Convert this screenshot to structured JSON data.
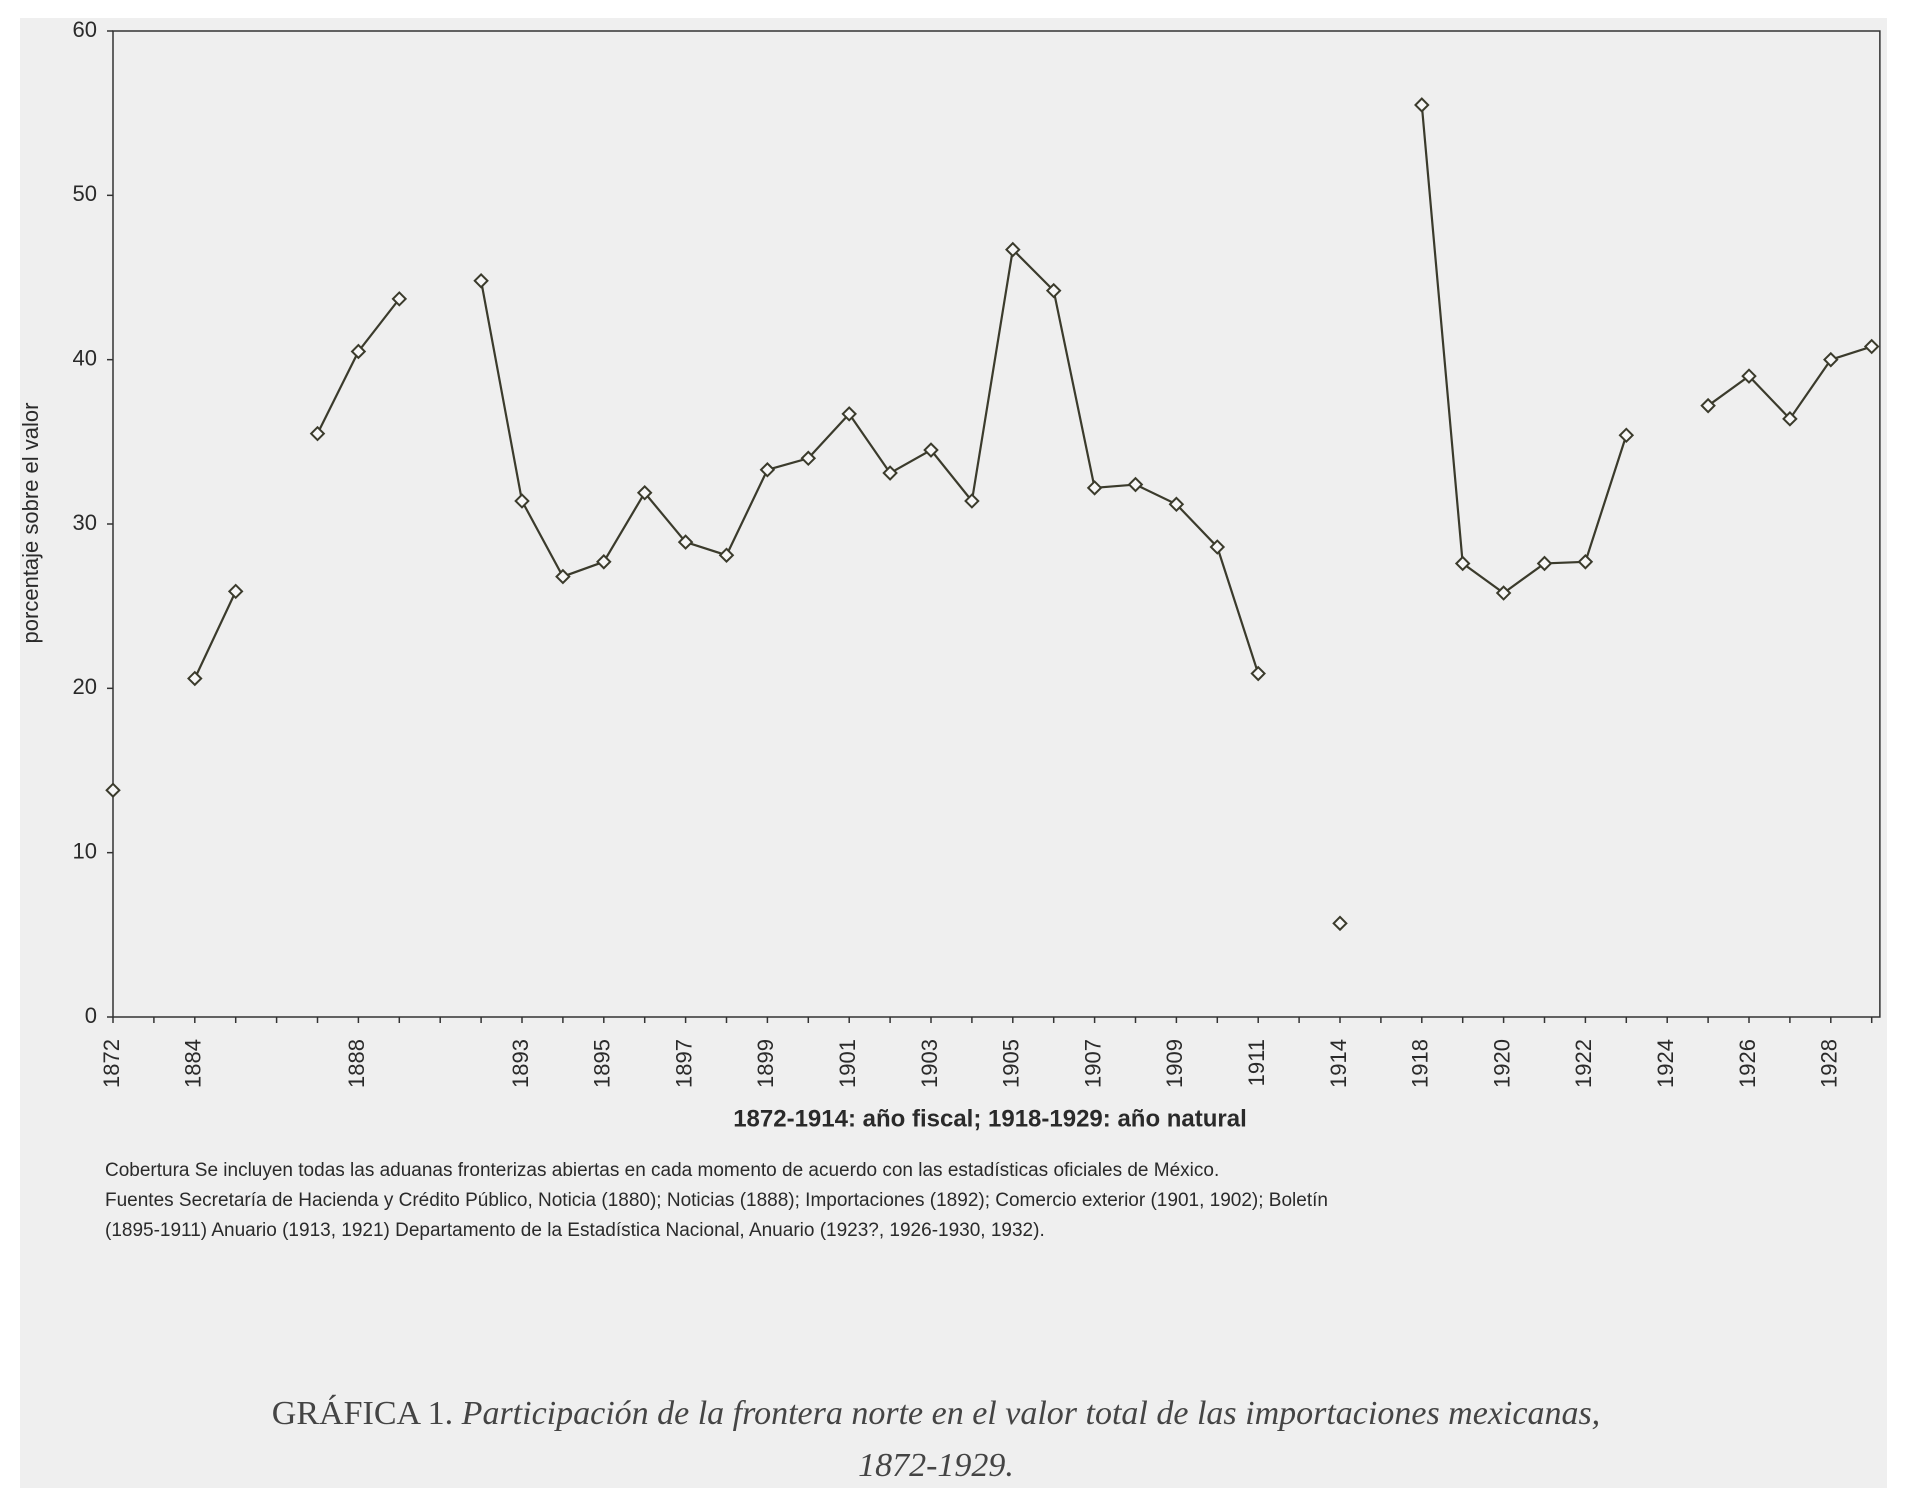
{
  "chart_data": {
    "type": "line",
    "ylabel": "porcentaje sobre el valor",
    "xlabel": "1872-1914: año fiscal; 1918-1929: año natural",
    "categories": [
      "1872",
      null,
      "1884",
      null,
      null,
      null,
      "1888",
      null,
      null,
      null,
      "1893",
      null,
      "1895",
      null,
      "1897",
      null,
      "1899",
      null,
      "1901",
      null,
      "1903",
      null,
      "1905",
      null,
      "1907",
      null,
      "1909",
      null,
      "1911",
      null,
      "1914",
      null,
      "1918",
      null,
      "1920",
      null,
      "1922",
      null,
      "1924",
      null,
      "1926",
      null,
      "1928",
      null
    ],
    "series": [
      {
        "color": "#3b3b2c",
        "values": [
          13.8,
          null,
          20.6,
          25.9,
          null,
          35.5,
          40.5,
          43.7,
          null,
          44.8,
          31.4,
          26.8,
          27.7,
          31.9,
          28.9,
          28.1,
          33.3,
          34.0,
          36.7,
          33.1,
          34.5,
          31.4,
          46.7,
          44.2,
          32.2,
          32.4,
          31.2,
          28.6,
          20.9,
          null,
          5.7,
          null,
          55.5,
          27.6,
          25.8,
          27.6,
          27.7,
          35.4,
          null,
          37.2,
          39.0,
          36.4,
          40.0,
          40.8
        ]
      }
    ],
    "ylim": [
      0,
      60
    ],
    "yticks": [
      0,
      10,
      20,
      30,
      40,
      50,
      60
    ],
    "notes": [
      "Cobertura  Se incluyen todas las aduanas fronterizas abiertas en cada momento de acuerdo con las estadísticas oficiales de México.",
      "Fuentes  Secretaría de Hacienda y Crédito Público, Noticia (1880); Noticias (1888); Importaciones (1892); Comercio exterior (1901, 1902); Boletín",
      "(1895-1911)  Anuario (1913, 1921)  Departamento de la Estadística Nacional, Anuario (1923?, 1926-1930, 1932)."
    ],
    "caption_label": "GRÁFICA 1.",
    "caption": [
      "Participación de la frontera norte en el valor total de las importaciones mexicanas,",
      "1872-1929."
    ]
  }
}
